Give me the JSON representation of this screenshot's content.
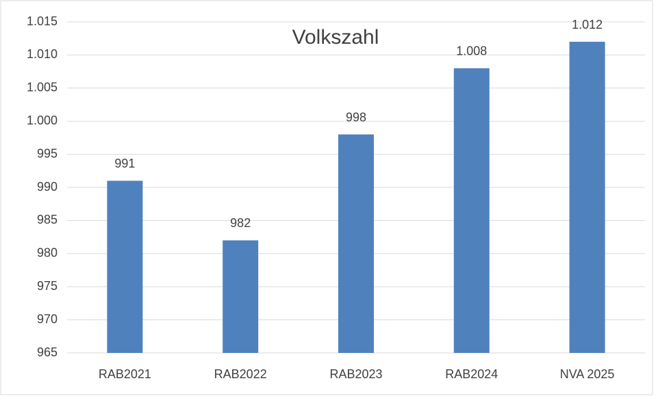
{
  "chart_data": {
    "type": "bar",
    "title": "Volkszahl",
    "categories": [
      "RAB2021",
      "RAB2022",
      "RAB2023",
      "RAB2024",
      "NVA 2025"
    ],
    "values": [
      991,
      982,
      998,
      1008,
      1012
    ],
    "value_labels": [
      "991",
      "982",
      "998",
      "1.008",
      "1.012"
    ],
    "color": "#4f81bd",
    "ylim": [
      965,
      1015
    ],
    "yticks": [
      965,
      970,
      975,
      980,
      985,
      990,
      995,
      {
        "value": 1000,
        "label": "1.000"
      },
      {
        "value": 1005,
        "label": "1.005"
      },
      {
        "value": 1010,
        "label": "1.010"
      },
      {
        "value": 1015,
        "label": "1.015"
      }
    ],
    "grid": true
  }
}
